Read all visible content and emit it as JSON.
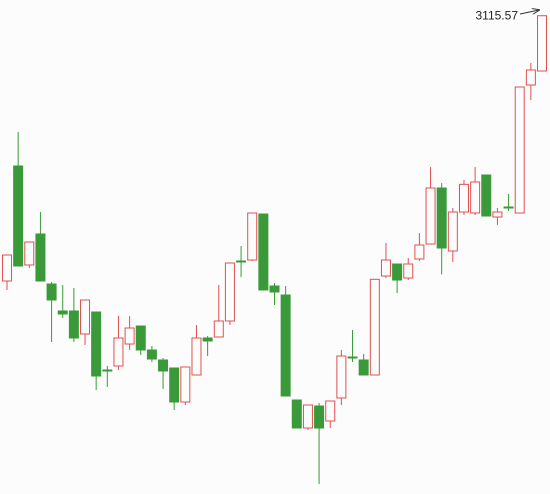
{
  "chart_data": {
    "type": "candlestick",
    "ylim": [
      2828.6,
      3125
    ],
    "up_color": "#e05050",
    "down_color": "#3a9a3a",
    "open": [
      2956.4,
      3025.4,
      2966,
      2984.6,
      2954.6,
      2938.4,
      2938.4,
      2924.6,
      2937.8,
      2903,
      2905.4,
      2918.6,
      2929.4,
      2915,
      2909,
      2904.2,
      2883.8,
      2900,
      2922.2,
      2922.8,
      2932.4,
      2968.4,
      2969,
      2996.6,
      2953.4,
      2948,
      2885,
      2868.2,
      2881.4,
      2872.4,
      2886.2,
      2910.8,
      2909,
      2900,
      2959.4,
      2966.6,
      2958.2,
      2969.6,
      2978.6,
      3012.2,
      2974.4,
      2997.8,
      2997.2,
      3020,
      2994.8,
      3000.8,
      2997.2,
      3074,
      3082.4
    ],
    "high": [
      2972,
      3045.8,
      2979.8,
      2997.8,
      2955.8,
      2954,
      2952.2,
      2945,
      2937.8,
      2905.4,
      2935.4,
      2935.4,
      2929.4,
      2917.4,
      2910.2,
      2904.2,
      2904.8,
      2930,
      2923.4,
      2954,
      2967.2,
      2977.4,
      2997.2,
      2996.6,
      2955.2,
      2953.4,
      2885,
      2882,
      2883.2,
      2884.4,
      2915,
      2927,
      2912.6,
      2957.4,
      2979.2,
      2966.6,
      2970.2,
      2985.2,
      3024.8,
      3015.2,
      3000.2,
      3017,
      3024.8,
      3020,
      3000.2,
      3008.6,
      3072.8,
      3087.2,
      3115.57
    ],
    "low": [
      2951,
      2965.4,
      2964.2,
      2956.4,
      2919.8,
      2934.2,
      2919.8,
      2918,
      2891,
      2892.8,
      2903,
      2915,
      2912,
      2907.8,
      2891.6,
      2879,
      2882,
      2900,
      2911.4,
      2922.8,
      2930,
      2958.8,
      2968.4,
      2951,
      2942,
      2887.4,
      2868.2,
      2867,
      2834.6,
      2868.2,
      2882,
      2907.8,
      2900,
      2900,
      2958.2,
      2949.2,
      2957,
      2968.4,
      2978.6,
      2960.4,
      2967.8,
      2996,
      2996,
      2995.4,
      2990,
      2998.4,
      2997.2,
      3065,
      3082.4
    ],
    "close": [
      2972,
      2965.4,
      2979.8,
      2956.4,
      2945,
      2936.6,
      2922.2,
      2945,
      2899.4,
      2902.4,
      2922.2,
      2928.2,
      2915,
      2909.6,
      2902.4,
      2883.8,
      2904.8,
      2922.2,
      2920.4,
      2932.4,
      2967.2,
      2967.8,
      2997.2,
      2951,
      2949.8,
      2887.4,
      2868.2,
      2882,
      2868.2,
      2884.4,
      2911.4,
      2910.2,
      2900,
      2957.4,
      2969,
      2957,
      2966.6,
      2978,
      3012.2,
      2976.2,
      2997.8,
      3014.4,
      3015.8,
      2995.4,
      2997.8,
      3000.2,
      3072.8,
      3083,
      3115.57
    ]
  }
}
